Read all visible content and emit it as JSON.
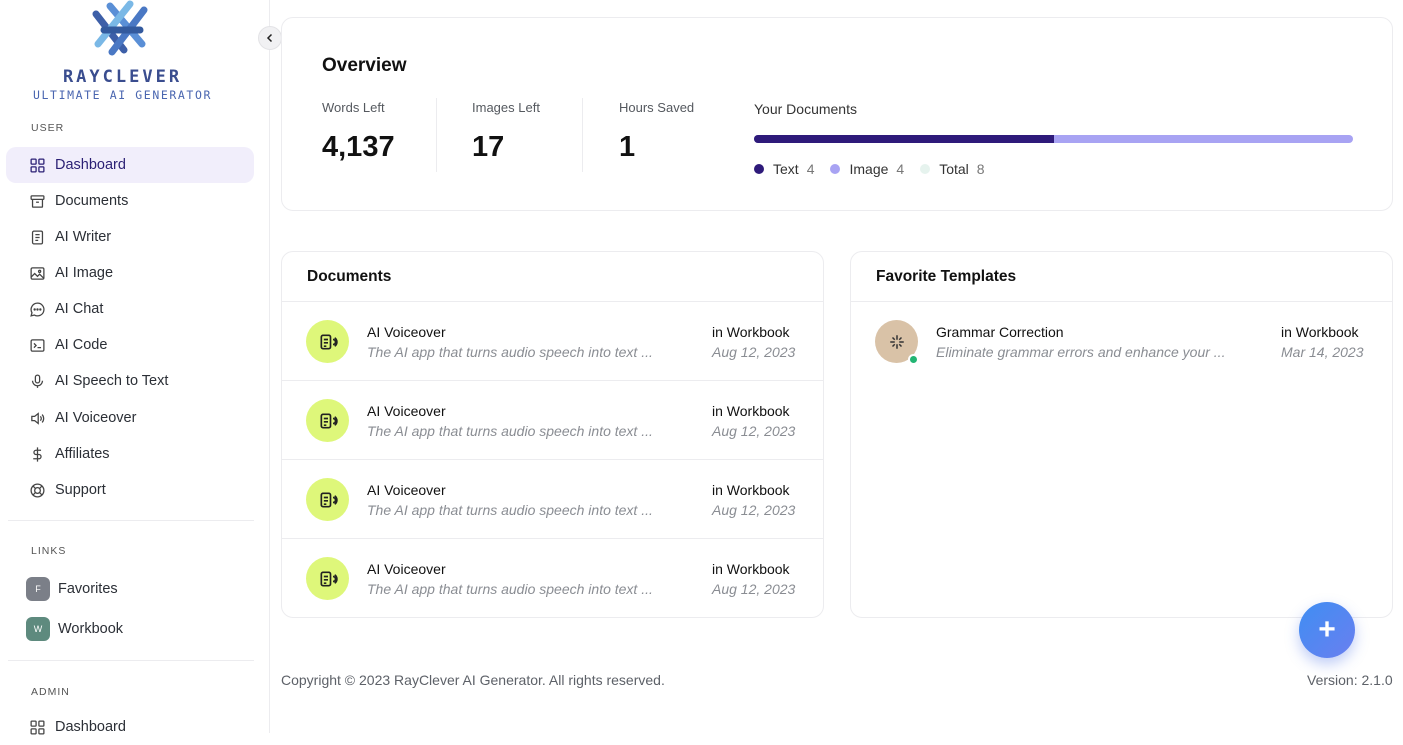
{
  "brand": {
    "name": "RAYCLEVER",
    "tagline": "ULTIMATE AI GENERATOR"
  },
  "sidebar": {
    "user_label": "USER",
    "items": [
      {
        "label": "Dashboard",
        "icon": "grid-icon",
        "active": true
      },
      {
        "label": "Documents",
        "icon": "archive-icon"
      },
      {
        "label": "AI Writer",
        "icon": "document-icon"
      },
      {
        "label": "AI Image",
        "icon": "image-icon"
      },
      {
        "label": "AI Chat",
        "icon": "chat-icon"
      },
      {
        "label": "AI Code",
        "icon": "terminal-icon"
      },
      {
        "label": "AI Speech to Text",
        "icon": "microphone-icon"
      },
      {
        "label": "AI Voiceover",
        "icon": "speaker-icon"
      },
      {
        "label": "Affiliates",
        "icon": "dollar-icon"
      },
      {
        "label": "Support",
        "icon": "lifebuoy-icon"
      }
    ],
    "links_label": "LINKS",
    "links": [
      {
        "badge": "F",
        "label": "Favorites",
        "color": "#7b7f88"
      },
      {
        "badge": "W",
        "label": "Workbook",
        "color": "#5e8a7e"
      }
    ],
    "admin_label": "ADMIN",
    "admin_items": [
      {
        "label": "Dashboard",
        "icon": "grid-icon"
      }
    ]
  },
  "overview": {
    "title": "Overview",
    "stats": [
      {
        "label": "Words Left",
        "value": "4,137"
      },
      {
        "label": "Images Left",
        "value": "17"
      },
      {
        "label": "Hours Saved",
        "value": "1"
      }
    ],
    "your_documents": {
      "label": "Your Documents",
      "text_fraction": 0.5,
      "legend": [
        {
          "name": "Text",
          "count": "4",
          "color": "#2e1a7a"
        },
        {
          "name": "Image",
          "count": "4",
          "color": "#a8a3f3"
        },
        {
          "name": "Total",
          "count": "8",
          "color": "#e6f3ee"
        }
      ]
    }
  },
  "documents": {
    "title": "Documents",
    "rows": [
      {
        "name": "AI Voiceover",
        "desc": "The AI app that turns audio speech into text ...",
        "location": "in Workbook",
        "date": "Aug 12, 2023"
      },
      {
        "name": "AI Voiceover",
        "desc": "The AI app that turns audio speech into text ...",
        "location": "in Workbook",
        "date": "Aug 12, 2023"
      },
      {
        "name": "AI Voiceover",
        "desc": "The AI app that turns audio speech into text ...",
        "location": "in Workbook",
        "date": "Aug 12, 2023"
      },
      {
        "name": "AI Voiceover",
        "desc": "The AI app that turns audio speech into text ...",
        "location": "in Workbook",
        "date": "Aug 12, 2023"
      }
    ]
  },
  "favorites": {
    "title": "Favorite Templates",
    "rows": [
      {
        "name": "Grammar Correction",
        "desc": "Eliminate grammar errors and enhance your ...",
        "location": "in Workbook",
        "date": "Mar 14, 2023"
      }
    ]
  },
  "footer": {
    "copyright": "Copyright © 2023 RayClever AI Generator. All rights reserved.",
    "version": "Version: 2.1.0"
  },
  "fab_label": "+"
}
